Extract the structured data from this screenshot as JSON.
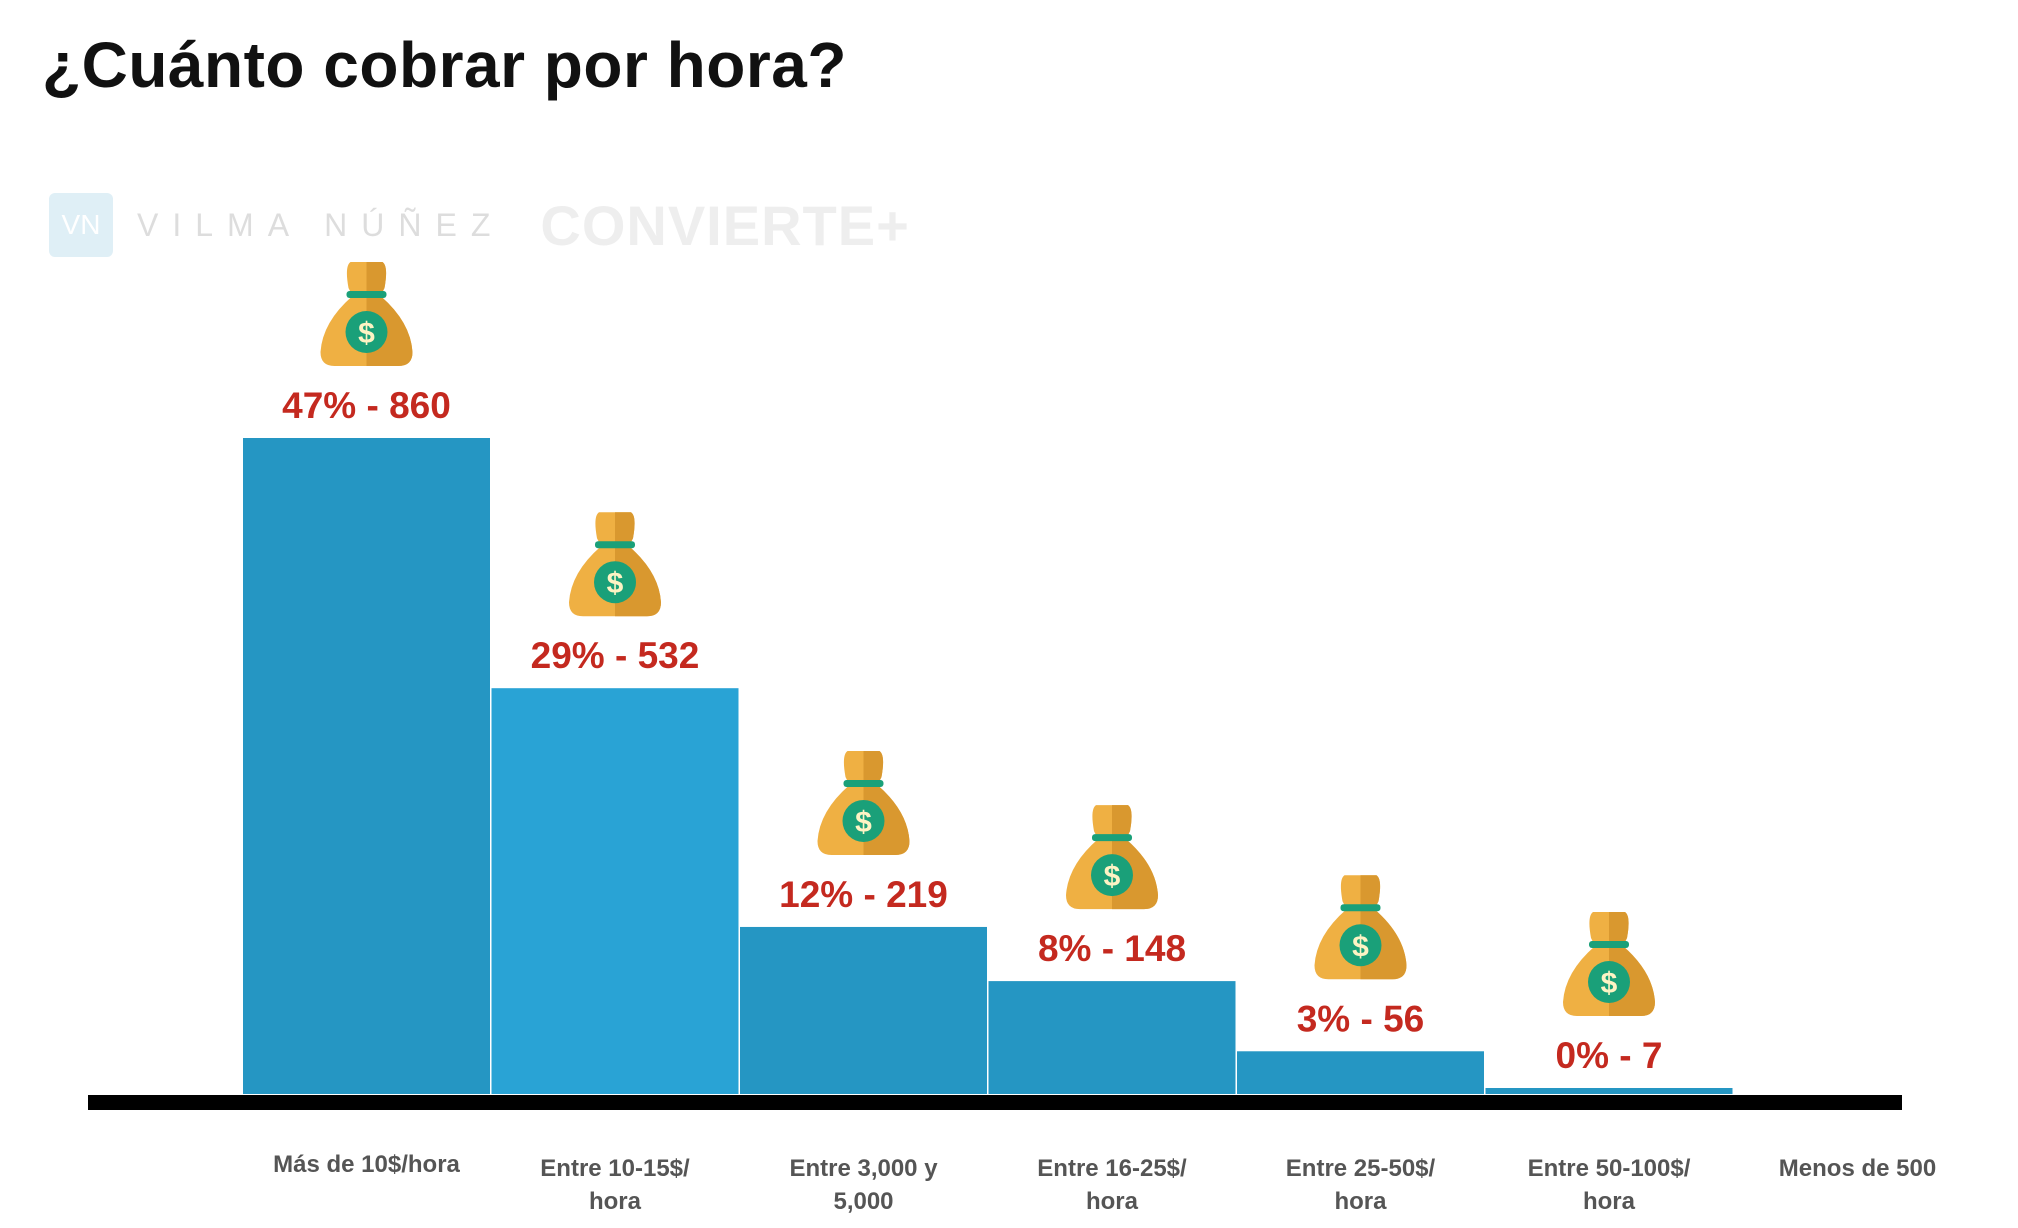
{
  "title": "¿Cuánto cobrar por hora?",
  "logo": {
    "mark": "VN",
    "name": "VILMA NÚÑEZ",
    "brand": "CONVIERTE+"
  },
  "chart_data": {
    "type": "bar",
    "title": "¿Cuánto cobrar por hora?",
    "categories": [
      [
        "Más de 10$/hora"
      ],
      [
        "Entre 10-15$/",
        "hora"
      ],
      [
        "Entre 3,000 y",
        "5,000"
      ],
      [
        "Entre 16-25$/",
        "hora"
      ],
      [
        "Entre 25-50$/",
        "hora"
      ],
      [
        "Entre 50-100$/",
        "hora"
      ],
      [
        "Menos de 500"
      ]
    ],
    "values": [
      860,
      532,
      219,
      148,
      56,
      7,
      null
    ],
    "percents": [
      47,
      29,
      12,
      8,
      3,
      0,
      null
    ],
    "data_labels": [
      "47% - 860",
      "29% - 532",
      "12% - 219",
      "8% - 148",
      "3% - 56",
      "0% - 7",
      ""
    ],
    "icon": "money-bag-icon",
    "colors": {
      "bar": "#2596c3",
      "bar_alt": "#29a3d5",
      "label": "#c4291f",
      "axis": "#000000",
      "bag": "#efb043",
      "bag_shade": "#d9982f",
      "dollar": "#1aa079"
    },
    "grid": false
  }
}
